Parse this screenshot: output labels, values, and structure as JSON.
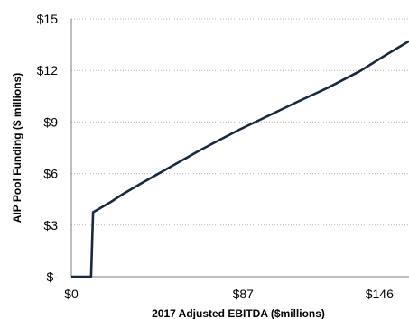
{
  "chart_data": {
    "type": "line",
    "title": "",
    "xlabel": "2017 Adjusted EBITDA ($millions)",
    "ylabel": "AIP Pool Funding ($ millions)",
    "xlim": [
      0,
      171
    ],
    "ylim": [
      0,
      15
    ],
    "grid": "horizontal-dotted",
    "legend": "none",
    "x_ticks": [
      {
        "value": 0,
        "label": "$0"
      },
      {
        "value": 87,
        "label": "$87"
      },
      {
        "value": 146,
        "label": "$146"
      }
    ],
    "y_ticks": [
      {
        "value": 0,
        "label": "$-"
      },
      {
        "value": 3,
        "label": "$3"
      },
      {
        "value": 6,
        "label": "$6"
      },
      {
        "value": 9,
        "label": "$9"
      },
      {
        "value": 12,
        "label": "$12"
      },
      {
        "value": 15,
        "label": "$15"
      }
    ],
    "series": [
      {
        "color": "#17293f",
        "x": [
          0,
          10,
          11,
          14,
          20,
          26,
          35,
          45,
          55,
          65,
          75,
          85,
          95,
          105,
          115,
          130,
          146,
          160,
          171
        ],
        "y": [
          0,
          0,
          3.75,
          3.95,
          4.35,
          4.8,
          5.4,
          6.05,
          6.7,
          7.35,
          7.95,
          8.55,
          9.1,
          9.65,
          10.2,
          11.0,
          11.95,
          12.95,
          13.7
        ]
      }
    ]
  }
}
